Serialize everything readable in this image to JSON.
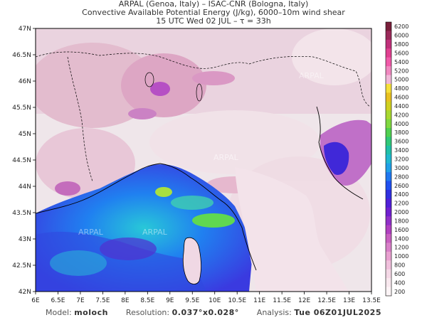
{
  "header": {
    "line1": "ARPAL (Genoa, Italy)  –  ISAC-CNR (Bologna, Italy)",
    "line2": "Convective Available Potential Energy (J/kg), 6000–10m wind shear",
    "line3": "15 UTC Wed 02 JUL  –  τ = 33h"
  },
  "map": {
    "lon_ticks": [
      "6E",
      "6.5E",
      "7E",
      "7.5E",
      "8E",
      "8.5E",
      "9E",
      "9.5E",
      "10E",
      "10.5E",
      "11E",
      "11.5E",
      "12E",
      "12.5E",
      "13E",
      "13.5E"
    ],
    "lat_ticks": [
      "47N",
      "46.5N",
      "46N",
      "45.5N",
      "45N",
      "44.5N",
      "44N",
      "43.5N",
      "43N",
      "42.5N",
      "42N"
    ],
    "lon_range": [
      6,
      13.5
    ],
    "lat_range": [
      42,
      47
    ],
    "watermark": "ARPAL"
  },
  "colorbar": {
    "levels": [
      "6200",
      "6000",
      "5800",
      "5600",
      "5400",
      "5200",
      "5000",
      "4800",
      "4600",
      "4400",
      "4200",
      "4000",
      "3800",
      "3600",
      "3400",
      "3200",
      "3000",
      "2800",
      "2600",
      "2400",
      "2200",
      "2000",
      "1800",
      "1600",
      "1400",
      "1200",
      "1000",
      "800",
      "600",
      "400",
      "200"
    ],
    "colors": [
      "#7a1f3b",
      "#9b2a5a",
      "#c0307a",
      "#e04090",
      "#f05aa8",
      "#f088c0",
      "#f0b8d8",
      "#f5e03a",
      "#e8c020",
      "#d0d020",
      "#a8d830",
      "#80d840",
      "#50d050",
      "#30c878",
      "#20c0a8",
      "#20b8d0",
      "#20a0e8",
      "#2078f0",
      "#2050f0",
      "#3030e0",
      "#5020d8",
      "#7020d0",
      "#9030c8",
      "#b040c0",
      "#c860c0",
      "#d880c8",
      "#e8a0d0",
      "#f0c0dc",
      "#f4d8e6",
      "#f8e8ee",
      "#fcf4f6"
    ]
  },
  "footer": {
    "model_label": "Model:",
    "model_value": "moloch",
    "resolution_label": "Resolution:",
    "resolution_value": "0.037°x0.028°",
    "analysis_label": "Analysis:",
    "analysis_value": "Tue 06Z01JUL2025"
  }
}
